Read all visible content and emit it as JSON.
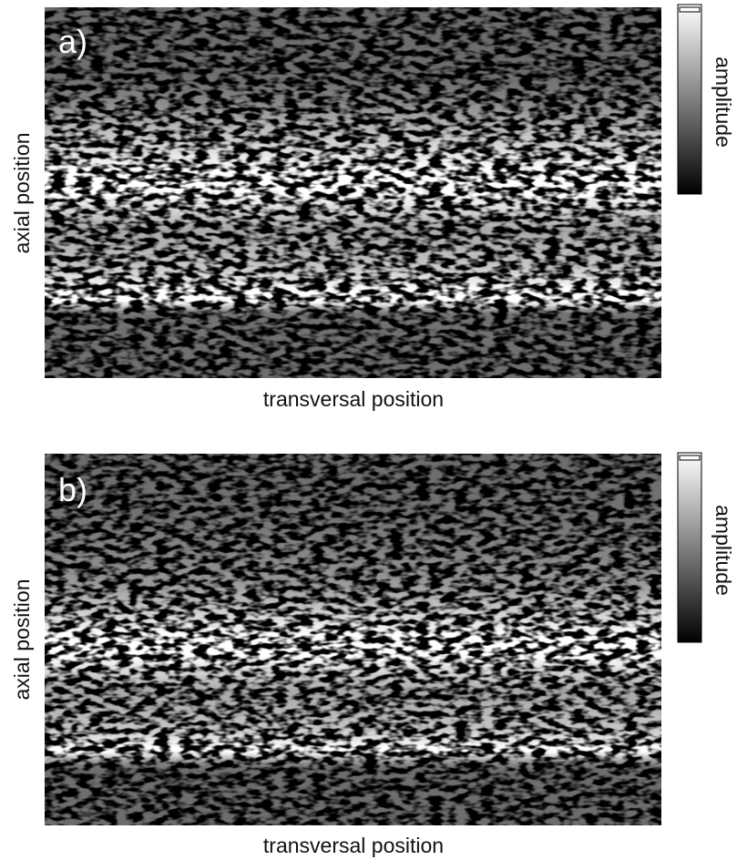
{
  "panels": [
    {
      "label": "a)",
      "x_label": "transversal position",
      "y_label": "axial position",
      "colorbar_label": "amplitude"
    },
    {
      "label": "b)",
      "x_label": "transversal position",
      "y_label": "axial position",
      "colorbar_label": "amplitude"
    }
  ]
}
